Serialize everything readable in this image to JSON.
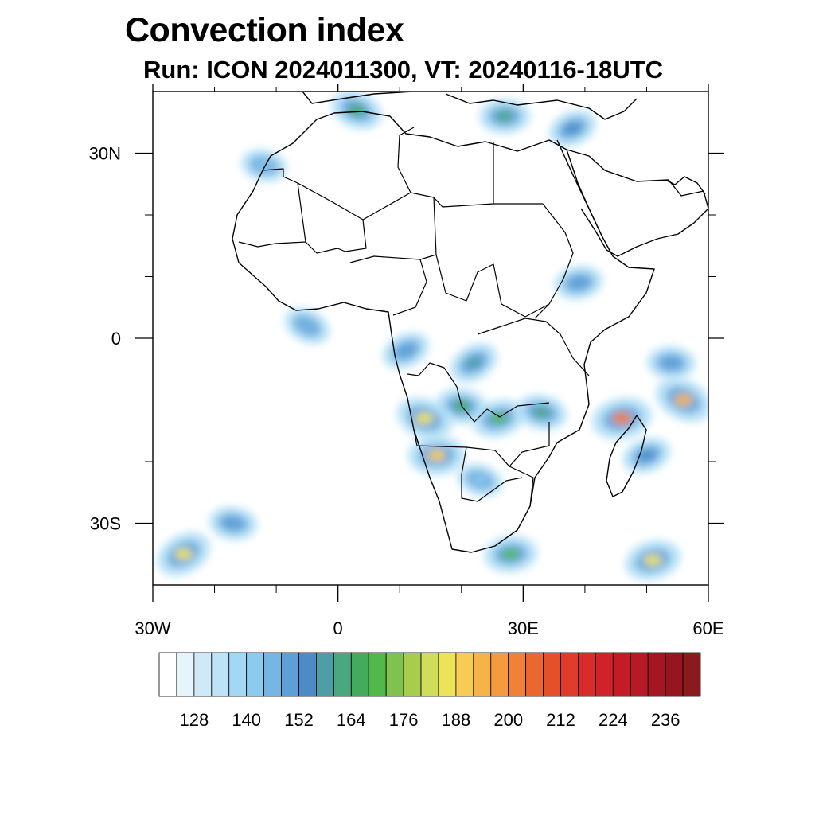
{
  "title": "Convection index",
  "subtitle": "Run: ICON 2024011300,  VT: 20240116-18UTC",
  "map": {
    "extent": {
      "lon_min": -30,
      "lon_max": 60,
      "lat_min": -40,
      "lat_max": 40
    },
    "lon_labels": [
      {
        "lon": -30,
        "text": "30W"
      },
      {
        "lon": 0,
        "text": "0"
      },
      {
        "lon": 30,
        "text": "30E"
      },
      {
        "lon": 60,
        "text": "60E"
      }
    ],
    "lat_labels": [
      {
        "lat": 30,
        "text": "30N"
      },
      {
        "lat": 0,
        "text": "0"
      },
      {
        "lat": -30,
        "text": "30S"
      }
    ],
    "minor_lon_ticks": [
      -20,
      -10,
      10,
      20,
      40,
      50
    ],
    "minor_lat_ticks": [
      20,
      10,
      -10,
      -20
    ]
  },
  "colorbar": {
    "n_boxes": 31,
    "colors": [
      "#ffffff",
      "#e6f4fc",
      "#cfe9f8",
      "#bde3f6",
      "#a3d8f4",
      "#8ccbee",
      "#76b6e4",
      "#5f9fd7",
      "#4b8cc7",
      "#4d9ea6",
      "#4aa87e",
      "#43ab5c",
      "#51b84a",
      "#7fc24f",
      "#a8cc4e",
      "#cfdd5a",
      "#ede359",
      "#f7cc55",
      "#f5b348",
      "#f49a3f",
      "#f08136",
      "#ea6730",
      "#e5502b",
      "#df3d2a",
      "#d92c2a",
      "#cf2229",
      "#c41c27",
      "#b71925",
      "#a61622",
      "#96151e",
      "#8a1a1c"
    ],
    "tick_labels": [
      "128",
      "140",
      "152",
      "164",
      "176",
      "188",
      "200",
      "212",
      "224",
      "236"
    ]
  },
  "convection_patches": [
    {
      "lon": 22,
      "lat": -4,
      "value": 158
    },
    {
      "lon": 20,
      "lat": -11,
      "value": 164
    },
    {
      "lon": 26,
      "lat": -13,
      "value": 170
    },
    {
      "lon": 14,
      "lat": -13,
      "value": 186
    },
    {
      "lon": 16,
      "lat": -19,
      "value": 188
    },
    {
      "lon": 11,
      "lat": -2,
      "value": 150
    },
    {
      "lon": 33,
      "lat": -12,
      "value": 160
    },
    {
      "lon": 46,
      "lat": -13,
      "value": 200
    },
    {
      "lon": 56,
      "lat": -10,
      "value": 192
    },
    {
      "lon": 54,
      "lat": -4,
      "value": 150
    },
    {
      "lon": 50,
      "lat": -19,
      "value": 152
    },
    {
      "lon": 23,
      "lat": -23,
      "value": 140
    },
    {
      "lon": 28,
      "lat": -35,
      "value": 170
    },
    {
      "lon": -25,
      "lat": -35,
      "value": 184
    },
    {
      "lon": -17,
      "lat": -30,
      "value": 150
    },
    {
      "lon": 51,
      "lat": -36,
      "value": 184
    },
    {
      "lon": 3,
      "lat": 37,
      "value": 166
    },
    {
      "lon": 27,
      "lat": 36,
      "value": 160
    },
    {
      "lon": 38,
      "lat": 34,
      "value": 152
    },
    {
      "lon": -12,
      "lat": 28,
      "value": 140
    },
    {
      "lon": 39,
      "lat": 9,
      "value": 150
    },
    {
      "lon": -5,
      "lat": 2,
      "value": 146
    }
  ]
}
